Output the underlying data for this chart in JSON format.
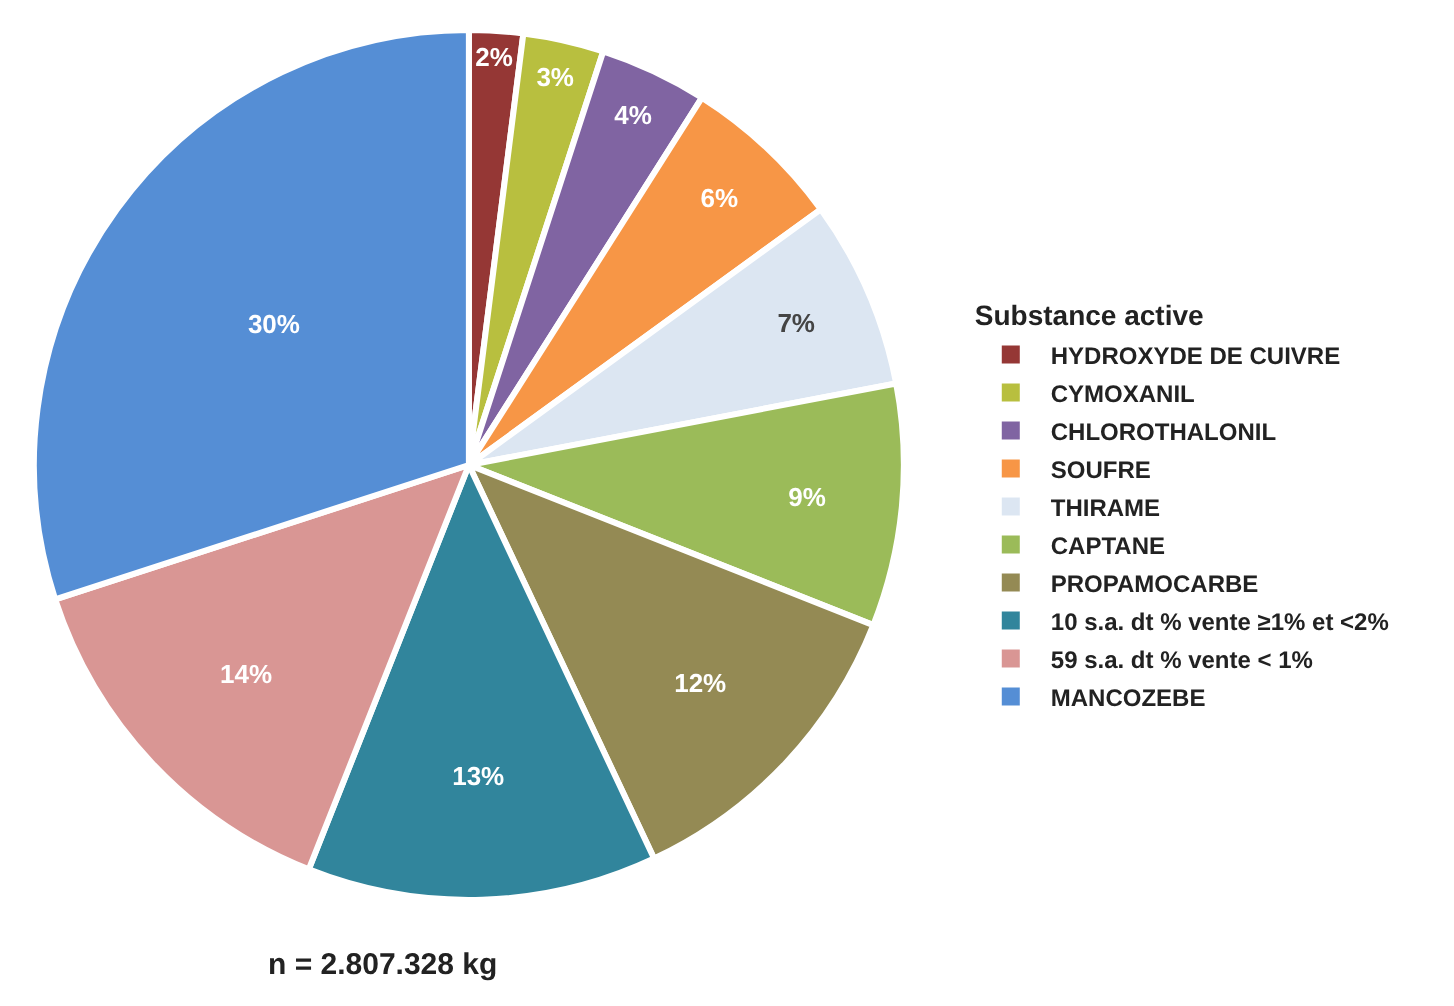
{
  "chart_data": {
    "type": "pie",
    "legend_title": "Substance active",
    "legend": "right",
    "categories": [
      "HYDROXYDE DE CUIVRE",
      "CYMOXANIL",
      "CHLOROTHALONIL",
      "SOUFRE",
      "THIRAME",
      "CAPTANE",
      "PROPAMOCARBE",
      "10 s.a. dt % vente ≥1% et <2%",
      "59 s.a. dt % vente < 1%",
      "MANCOZEBE"
    ],
    "values": [
      2,
      3,
      4,
      6,
      7,
      9,
      12,
      13,
      14,
      30
    ],
    "value_labels": [
      "2%",
      "3%",
      "4%",
      "6%",
      "7%",
      "9%",
      "12%",
      "13%",
      "14%",
      "30%"
    ],
    "colors": [
      "#953735",
      "#b8bf3f",
      "#8064a2",
      "#f79646",
      "#dce6f2",
      "#9bbb59",
      "#948a54",
      "#31859c",
      "#d99694",
      "#558ed5"
    ],
    "annotations": [
      "n = 2.807.328 kg"
    ]
  }
}
